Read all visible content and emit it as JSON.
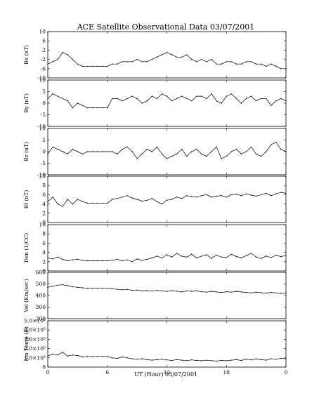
{
  "title": "ACE Satellite Observational Data   03/07/2001",
  "x_axis": {
    "label": "UT (Hour)  03/07/2001",
    "ticks": [
      "0",
      "6",
      "12",
      "18",
      "0"
    ]
  },
  "chart_data": [
    {
      "type": "line",
      "ylabel": "Bx (nT)",
      "ylim": [
        -10,
        10
      ],
      "yticks": [
        "10",
        "6",
        "2",
        "-2",
        "-6",
        "-10"
      ],
      "x": [
        0,
        0.5,
        1,
        1.5,
        2,
        2.5,
        3,
        3.5,
        4,
        4.5,
        5,
        5.5,
        6,
        6.5,
        7,
        7.5,
        8,
        8.5,
        9,
        9.5,
        10,
        10.5,
        11,
        11.5,
        12,
        12.5,
        13,
        13.5,
        14,
        14.5,
        15,
        15.5,
        16,
        16.5,
        17,
        17.5,
        18,
        18.5,
        19,
        19.5,
        20,
        20.5,
        21,
        21.5,
        22,
        22.5,
        23,
        23.5,
        24
      ],
      "values": [
        -4,
        -3,
        -2,
        1,
        0,
        -2,
        -4,
        -5,
        -5,
        -5,
        -5,
        -5,
        -5,
        -4,
        -4,
        -3,
        -3,
        -3,
        -2,
        -3,
        -3,
        -2,
        -1,
        0,
        1,
        0,
        -1,
        -1,
        0,
        -2,
        -3,
        -2,
        -3,
        -2,
        -4,
        -4,
        -3,
        -3,
        -4,
        -4,
        -3,
        -3,
        -4,
        -4,
        -5,
        -4,
        -5,
        -6,
        -6
      ]
    },
    {
      "type": "line",
      "ylabel": "By (nT)",
      "ylim": [
        -10,
        10
      ],
      "yticks": [
        "10",
        "5",
        "0",
        "-5",
        "-10"
      ],
      "x": [
        0,
        0.5,
        1,
        1.5,
        2,
        2.5,
        3,
        3.5,
        4,
        4.5,
        5,
        5.5,
        6,
        6.5,
        7,
        7.5,
        8,
        8.5,
        9,
        9.5,
        10,
        10.5,
        11,
        11.5,
        12,
        12.5,
        13,
        13.5,
        14,
        14.5,
        15,
        15.5,
        16,
        16.5,
        17,
        17.5,
        18,
        18.5,
        19,
        19.5,
        20,
        20.5,
        21,
        21.5,
        22,
        22.5,
        23,
        23.5,
        24
      ],
      "values": [
        2,
        4,
        3,
        2,
        1,
        -2,
        0,
        -1,
        -2,
        -2,
        -2,
        -2,
        -2,
        2,
        2,
        1,
        2,
        3,
        2,
        0,
        1,
        3,
        2,
        4,
        3,
        1,
        2,
        3,
        2,
        1,
        3,
        3,
        2,
        4,
        1,
        0,
        3,
        4,
        2,
        0,
        2,
        3,
        1,
        2,
        2,
        -1,
        1,
        2,
        1
      ]
    },
    {
      "type": "line",
      "ylabel": "Bz (nT)",
      "ylim": [
        -10,
        10
      ],
      "yticks": [
        "10",
        "5",
        "0",
        "-5",
        "-10"
      ],
      "x": [
        0,
        0.5,
        1,
        1.5,
        2,
        2.5,
        3,
        3.5,
        4,
        4.5,
        5,
        5.5,
        6,
        6.5,
        7,
        7.5,
        8,
        8.5,
        9,
        9.5,
        10,
        10.5,
        11,
        11.5,
        12,
        12.5,
        13,
        13.5,
        14,
        14.5,
        15,
        15.5,
        16,
        16.5,
        17,
        17.5,
        18,
        18.5,
        19,
        19.5,
        20,
        20.5,
        21,
        21.5,
        22,
        22.5,
        23,
        23.5,
        24
      ],
      "values": [
        -1,
        2,
        1,
        0,
        -1,
        1,
        0,
        -1,
        0,
        0,
        0,
        0,
        0,
        0,
        -1,
        1,
        2,
        0,
        -3,
        -1,
        1,
        0,
        2,
        -1,
        -3,
        -2,
        -1,
        1,
        -2,
        0,
        1,
        -1,
        -2,
        0,
        2,
        -3,
        -2,
        0,
        1,
        -1,
        0,
        2,
        -1,
        -2,
        0,
        3,
        4,
        1,
        0
      ]
    },
    {
      "type": "line",
      "ylabel": "Bt (nT)",
      "ylim": [
        0,
        10
      ],
      "yticks": [
        "10",
        "8",
        "6",
        "4",
        "2",
        "0"
      ],
      "x": [
        0,
        0.5,
        1,
        1.5,
        2,
        2.5,
        3,
        3.5,
        4,
        4.5,
        5,
        5.5,
        6,
        6.5,
        7,
        7.5,
        8,
        8.5,
        9,
        9.5,
        10,
        10.5,
        11,
        11.5,
        12,
        12.5,
        13,
        13.5,
        14,
        14.5,
        15,
        15.5,
        16,
        16.5,
        17,
        17.5,
        18,
        18.5,
        19,
        19.5,
        20,
        20.5,
        21,
        21.5,
        22,
        22.5,
        23,
        23.5,
        24
      ],
      "values": [
        4.5,
        5.5,
        4,
        3.5,
        5,
        4,
        5,
        4.5,
        4.2,
        4.2,
        4.2,
        4.2,
        4.2,
        5,
        5.2,
        5.5,
        5.8,
        5.3,
        5,
        4.6,
        4.8,
        5.2,
        4.5,
        4,
        4.8,
        5,
        5.5,
        5.2,
        5.8,
        5.6,
        5.5,
        5.8,
        6,
        5.5,
        5.7,
        5.8,
        5.5,
        6,
        6.1,
        5.8,
        6.2,
        5.9,
        5.7,
        6,
        6.3,
        5.8,
        6.2,
        6.5,
        6.3
      ]
    },
    {
      "type": "line",
      "ylabel": "Den (1/CC)",
      "ylim": [
        0,
        10
      ],
      "yticks": [
        "10",
        "8",
        "6",
        "4",
        "2",
        "0"
      ],
      "x": [
        0,
        0.5,
        1,
        1.5,
        2,
        2.5,
        3,
        3.5,
        4,
        4.5,
        5,
        5.5,
        6,
        6.5,
        7,
        7.5,
        8,
        8.5,
        9,
        9.5,
        10,
        10.5,
        11,
        11.5,
        12,
        12.5,
        13,
        13.5,
        14,
        14.5,
        15,
        15.5,
        16,
        16.5,
        17,
        17.5,
        18,
        18.5,
        19,
        19.5,
        20,
        20.5,
        21,
        21.5,
        22,
        22.5,
        23,
        23.5,
        24
      ],
      "values": [
        2.8,
        2.6,
        3,
        2.5,
        2.2,
        2.4,
        2.5,
        2.3,
        2.2,
        2.2,
        2.2,
        2.2,
        2.2,
        2.3,
        2.5,
        2.2,
        2.4,
        2,
        2.6,
        2.3,
        2.5,
        2.8,
        3.2,
        2.8,
        3.5,
        3,
        3.8,
        3.2,
        3,
        3.6,
        2.8,
        3.2,
        3.5,
        2.7,
        3.4,
        3,
        2.9,
        3.6,
        3.1,
        2.8,
        3.3,
        3.8,
        3,
        2.7,
        3.2,
        2.9,
        3.4,
        3.1,
        3.3
      ]
    },
    {
      "type": "line",
      "ylabel": "Vel (Km/sec)",
      "ylim": [
        200,
        650
      ],
      "yticks": [
        "600",
        "500",
        "400",
        "300",
        "200"
      ],
      "x": [
        0,
        0.5,
        1,
        1.5,
        2,
        2.5,
        3,
        3.5,
        4,
        4.5,
        5,
        5.5,
        6,
        6.5,
        7,
        7.5,
        8,
        8.5,
        9,
        9.5,
        10,
        10.5,
        11,
        11.5,
        12,
        12.5,
        13,
        13.5,
        14,
        14.5,
        15,
        15.5,
        16,
        16.5,
        17,
        17.5,
        18,
        18.5,
        19,
        19.5,
        20,
        20.5,
        21,
        21.5,
        22,
        22.5,
        23,
        23.5,
        24
      ],
      "values": [
        505,
        515,
        525,
        530,
        520,
        510,
        505,
        500,
        495,
        495,
        495,
        495,
        495,
        490,
        485,
        480,
        485,
        475,
        478,
        470,
        472,
        468,
        475,
        470,
        465,
        472,
        468,
        460,
        470,
        465,
        470,
        462,
        458,
        465,
        460,
        455,
        462,
        458,
        465,
        460,
        455,
        450,
        458,
        452,
        448,
        455,
        450,
        445,
        450
      ]
    },
    {
      "type": "line",
      "ylabel": "Ion Temp (K)",
      "ylim": [
        0,
        500000
      ],
      "yticks": [
        "5.0×10⁵",
        "4.0×10⁵",
        "3.0×10⁵",
        "2.0×10⁵",
        "1.0×10⁵",
        "0"
      ],
      "x": [
        0,
        0.5,
        1,
        1.5,
        2,
        2.5,
        3,
        3.5,
        4,
        4.5,
        5,
        5.5,
        6,
        6.5,
        7,
        7.5,
        8,
        8.5,
        9,
        9.5,
        10,
        10.5,
        11,
        11.5,
        12,
        12.5,
        13,
        13.5,
        14,
        14.5,
        15,
        15.5,
        16,
        16.5,
        17,
        17.5,
        18,
        18.5,
        19,
        19.5,
        20,
        20.5,
        21,
        21.5,
        22,
        22.5,
        23,
        23.5,
        24
      ],
      "values": [
        120000,
        140000,
        130000,
        160000,
        120000,
        130000,
        125000,
        110000,
        115000,
        115000,
        115000,
        115000,
        115000,
        100000,
        95000,
        110000,
        100000,
        90000,
        85000,
        90000,
        80000,
        75000,
        80000,
        85000,
        78000,
        72000,
        80000,
        75000,
        70000,
        78000,
        72000,
        68000,
        74000,
        70000,
        65000,
        72000,
        68000,
        75000,
        80000,
        72000,
        85000,
        78000,
        88000,
        80000,
        75000,
        90000,
        85000,
        95000,
        90000
      ]
    }
  ]
}
